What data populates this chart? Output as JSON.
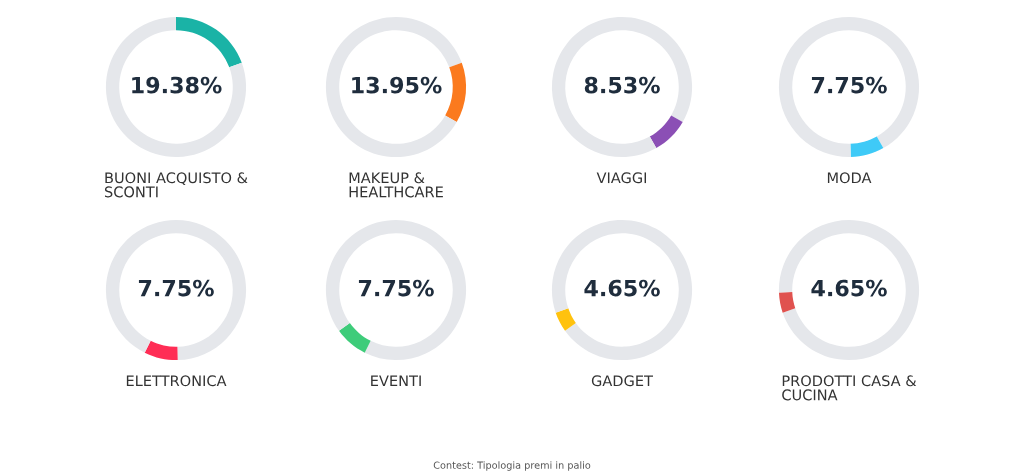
{
  "chart_data": [
    {
      "type": "donut",
      "title": "BUONI ACQUISTO &\nSCONTI",
      "categories": [
        null,
        null,
        null
      ],
      "values": [
        0,
        19.38,
        80.62
      ],
      "colors": [
        "#e5e7eb",
        "#1ab3a6",
        "#e5e7eb"
      ],
      "annotations": [
        "19.38%"
      ]
    },
    {
      "type": "donut",
      "title": "MAKEUP &\nHEALTHCARE",
      "categories": [
        null,
        null,
        null
      ],
      "values": [
        19.38,
        13.95,
        66.67
      ],
      "colors": [
        "#e5e7eb",
        "#fb7a1e",
        "#e5e7eb"
      ],
      "annotations": [
        "13.95%"
      ]
    },
    {
      "type": "donut",
      "title": "VIAGGI",
      "categories": [
        null,
        null,
        null
      ],
      "values": [
        33.33,
        8.53,
        58.14
      ],
      "colors": [
        "#e5e7eb",
        "#8b4fb5",
        "#e5e7eb"
      ],
      "annotations": [
        "8.53%"
      ]
    },
    {
      "type": "donut",
      "title": "MODA",
      "categories": [
        null,
        null,
        null
      ],
      "values": [
        41.86,
        7.75,
        50.39
      ],
      "colors": [
        "#e5e7eb",
        "#3fcaf7",
        "#e5e7eb"
      ],
      "annotations": [
        "7.75%"
      ]
    },
    {
      "type": "donut",
      "title": "ELETTRONICA",
      "categories": [
        null,
        null,
        null
      ],
      "values": [
        49.61,
        7.75,
        42.64
      ],
      "colors": [
        "#e5e7eb",
        "#ff2d55",
        "#e5e7eb"
      ],
      "annotations": [
        "7.75%"
      ]
    },
    {
      "type": "donut",
      "title": "EVENTI",
      "categories": [
        null,
        null,
        null
      ],
      "values": [
        57.36,
        7.75,
        34.89
      ],
      "colors": [
        "#e5e7eb",
        "#3ecc7a",
        "#e5e7eb"
      ],
      "annotations": [
        "7.75%"
      ]
    },
    {
      "type": "donut",
      "title": "GADGET",
      "categories": [
        null,
        null,
        null
      ],
      "values": [
        65.11,
        4.65,
        30.24
      ],
      "colors": [
        "#e5e7eb",
        "#ffc20e",
        "#e5e7eb"
      ],
      "annotations": [
        "4.65%"
      ]
    },
    {
      "type": "donut",
      "title": "PRODOTTI CASA &\nCUCINA",
      "categories": [
        null,
        null,
        null
      ],
      "values": [
        69.76,
        4.65,
        25.59
      ],
      "colors": [
        "#e5e7eb",
        "#e0524f",
        "#e5e7eb"
      ],
      "annotations": [
        "4.65%",
        "Contest: Tipologia premi in palio"
      ]
    }
  ]
}
